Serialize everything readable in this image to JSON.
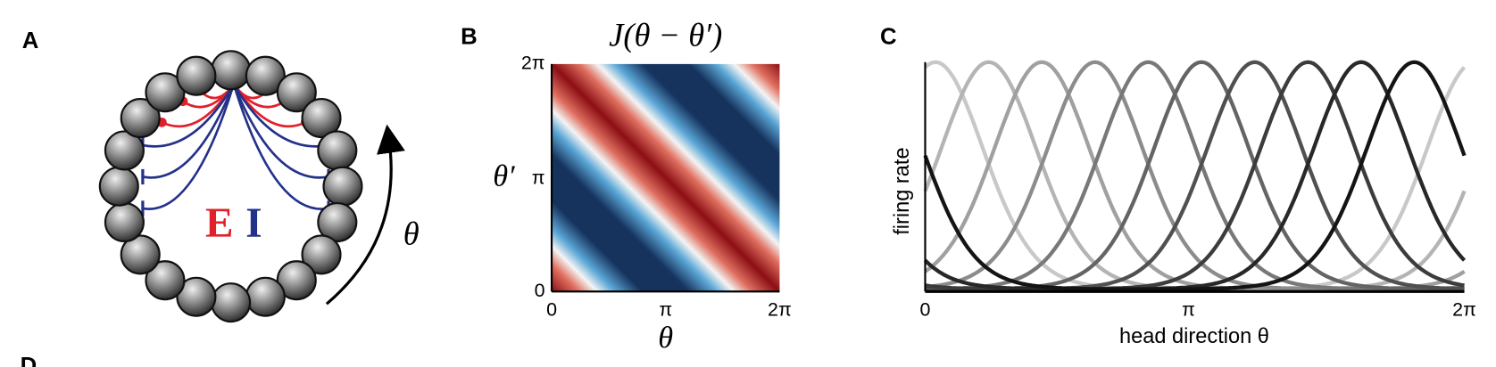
{
  "panels": [
    {
      "label": "A",
      "texts": [
        "E",
        "I",
        "θ"
      ]
    },
    {
      "label": "B",
      "title": "J(θ − θ′)",
      "x_axis_label": "θ",
      "y_axis_label": "θ′",
      "x_ticks": [
        "0",
        "π",
        "2π"
      ],
      "y_ticks": [
        "0",
        "π",
        "2π"
      ]
    },
    {
      "label": "C",
      "x_axis_label": "head direction θ",
      "y_axis_label": "firing rate",
      "x_ticks": [
        "0",
        "π",
        "2π"
      ]
    },
    {
      "label": "D"
    }
  ]
}
